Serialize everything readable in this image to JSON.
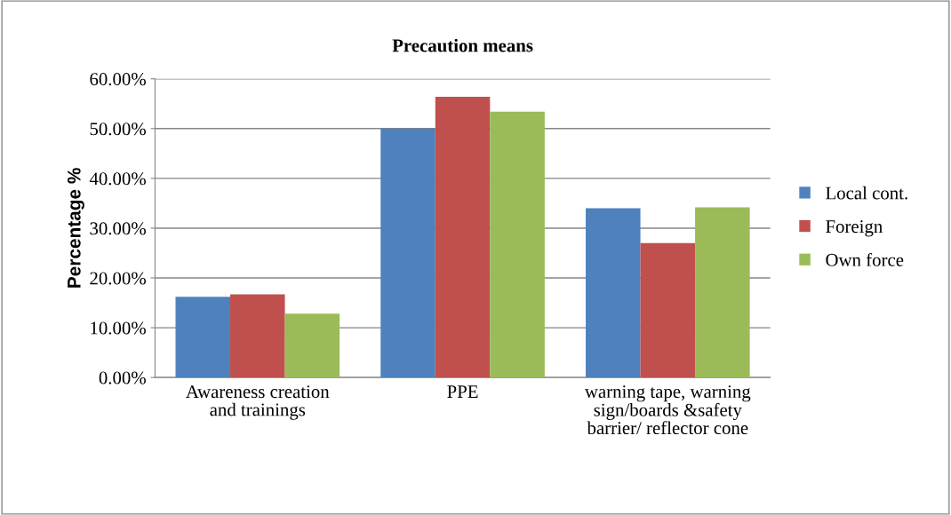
{
  "chart_data": {
    "type": "bar",
    "title": "Precaution means",
    "ylabel": "Percentage %",
    "categories": [
      "Awareness creation and trainings",
      "PPE",
      "warning tape, warning sign/boards &safety barrier/ reflector cone"
    ],
    "series": [
      {
        "name": "Local cont.",
        "color": "#4f81bd",
        "values": [
          16.2,
          50.0,
          34.0
        ]
      },
      {
        "name": "Foreign",
        "color": "#c0504d",
        "values": [
          16.7,
          56.4,
          27.0
        ]
      },
      {
        "name": "Own force",
        "color": "#9bbb59",
        "values": [
          12.8,
          53.4,
          34.2
        ]
      }
    ],
    "ylim": [
      0,
      60
    ],
    "yticks": [
      {
        "value": 0,
        "label": "0.00%"
      },
      {
        "value": 10,
        "label": "10.00%"
      },
      {
        "value": 20,
        "label": "20.00%"
      },
      {
        "value": 30,
        "label": "30.00%"
      },
      {
        "value": 40,
        "label": "40.00%"
      },
      {
        "value": 50,
        "label": "50.00%"
      },
      {
        "value": 60,
        "label": "60.00%"
      }
    ],
    "grid": "y",
    "legend": "right"
  }
}
